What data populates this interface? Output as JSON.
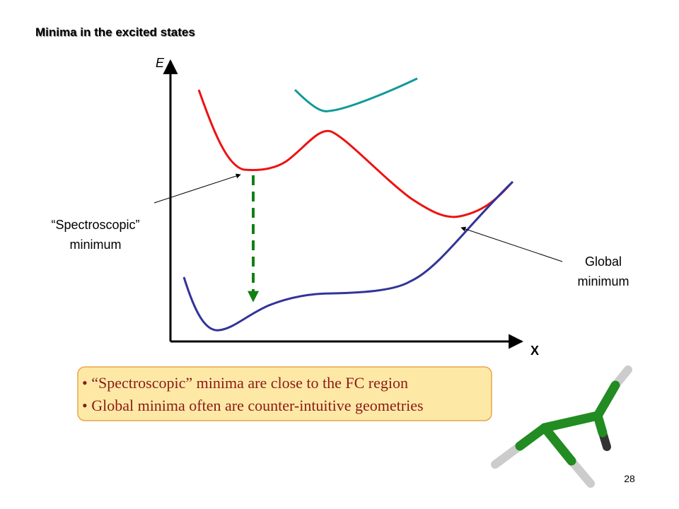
{
  "title": "Minima in the excited states",
  "axes": {
    "y_label": "E",
    "x_label": "X"
  },
  "annotations": {
    "spectroscopic": [
      "“Spectroscopic”",
      "minimum"
    ],
    "global": [
      "Global",
      "minimum"
    ]
  },
  "bullets": [
    "• “Spectroscopic” minima are close to the FC region",
    "• Global minima often are counter-intuitive geometries"
  ],
  "page_number": "28"
}
